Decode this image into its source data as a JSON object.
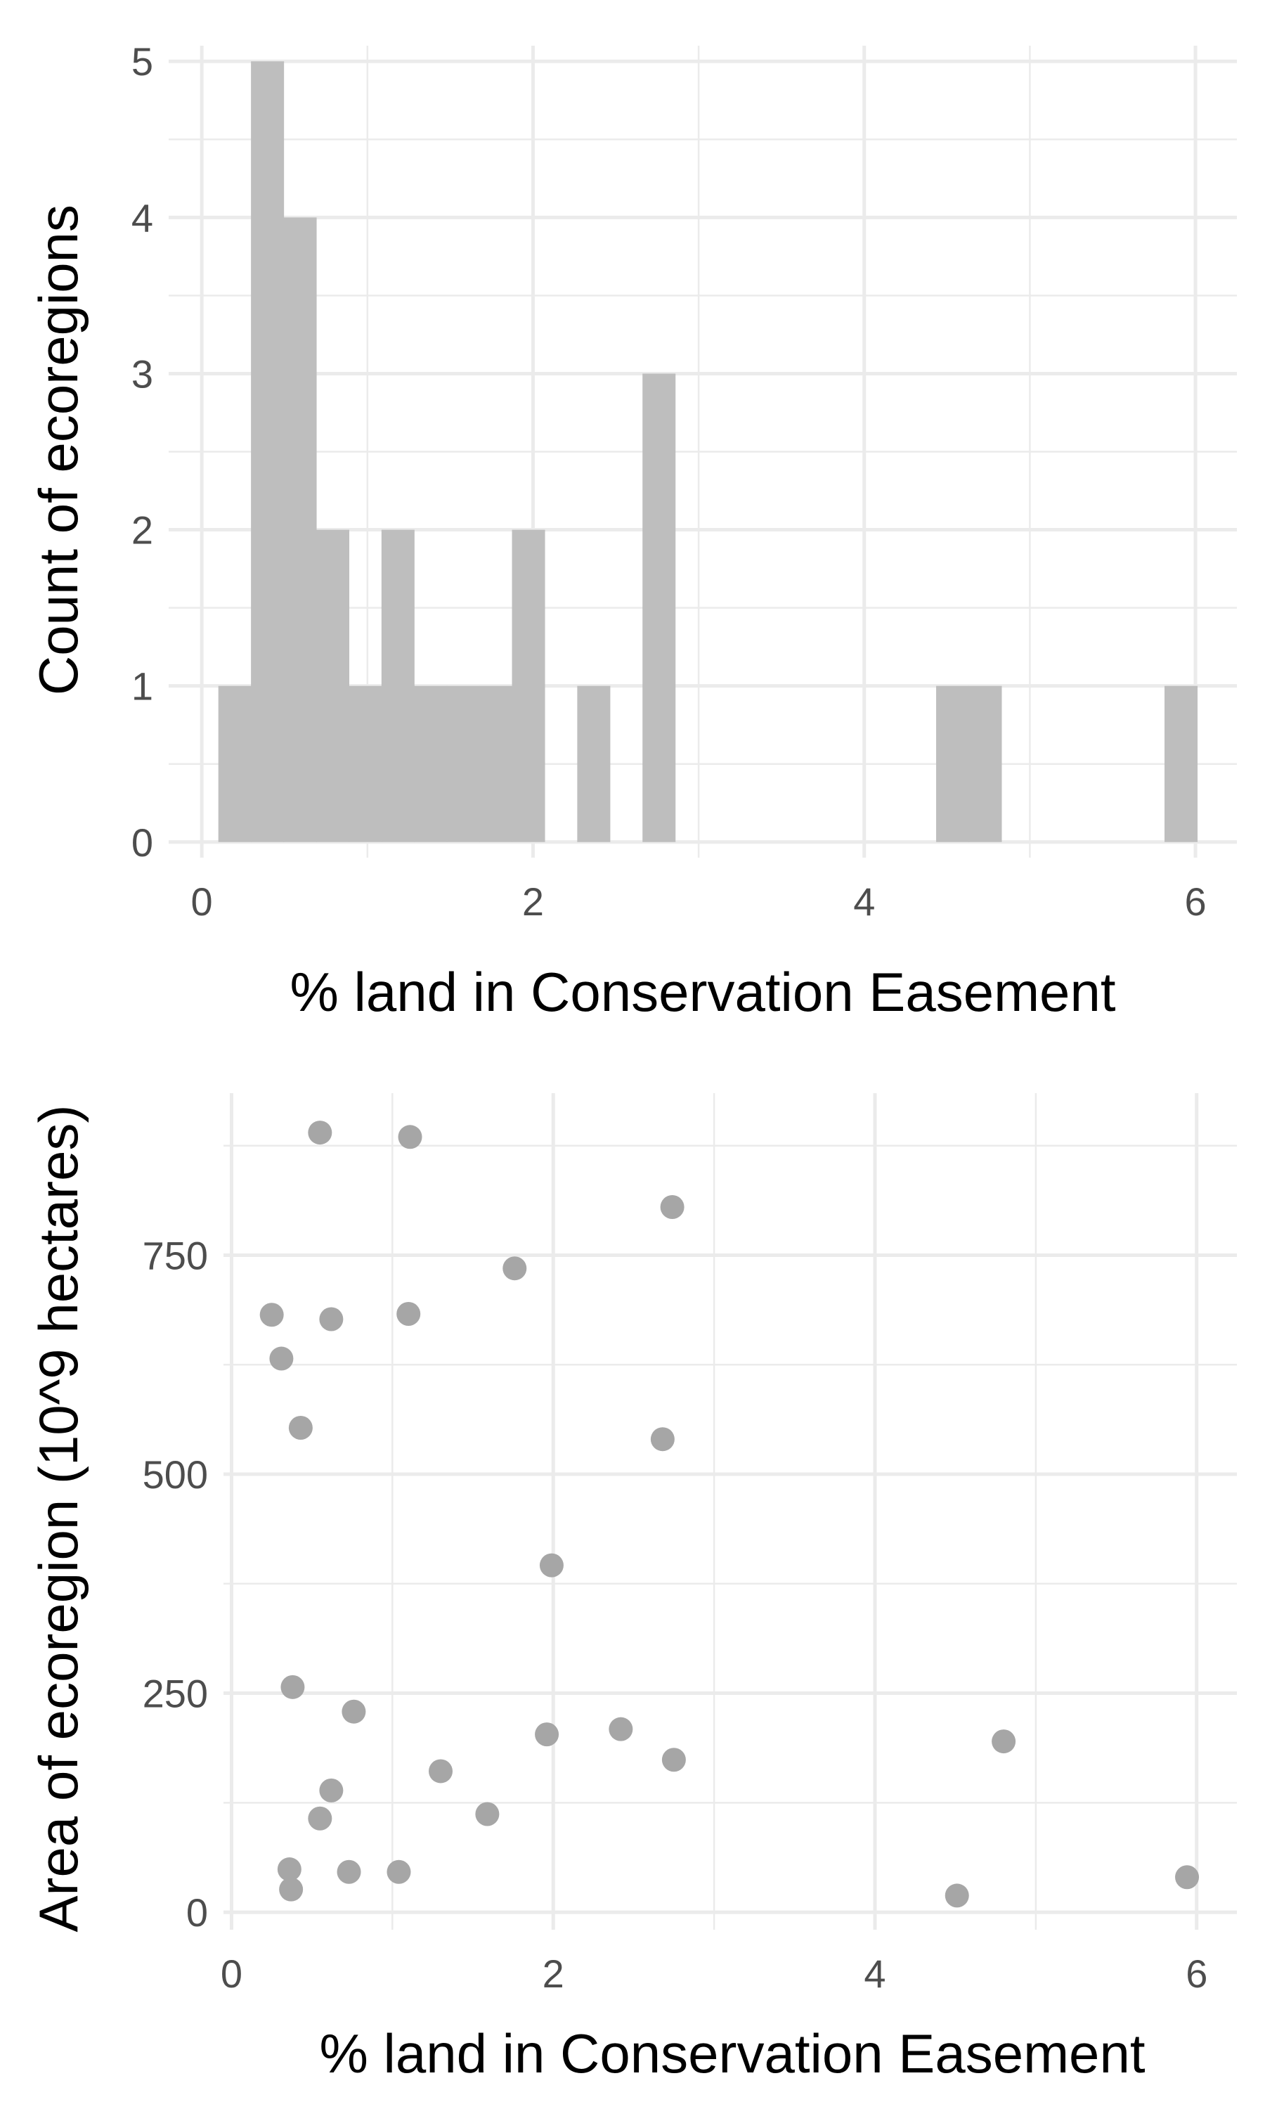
{
  "chart_data": [
    {
      "type": "bar",
      "subtype": "histogram",
      "xlabel": "% land in Conservation Easement",
      "ylabel": "Count of ecoregions",
      "xlim": [
        -0.2,
        6.25
      ],
      "ylim": [
        -0.1,
        5.1
      ],
      "xticks": [
        0,
        2,
        4,
        6
      ],
      "yticks": [
        0,
        1,
        2,
        3,
        4,
        5
      ],
      "grid": true,
      "bin_width": 0.197,
      "bin_start": 0.1,
      "counts": [
        1,
        5,
        4,
        2,
        1,
        2,
        1,
        1,
        1,
        2,
        0,
        1,
        0,
        3,
        0,
        0,
        0,
        0,
        0,
        0,
        0,
        0,
        1,
        1,
        0,
        0,
        0,
        0,
        0,
        1
      ],
      "bar_color": "#bebebe"
    },
    {
      "type": "scatter",
      "xlabel": "% land in Conservation Easement",
      "ylabel": "Area of ecoregion (10^9 hectares)",
      "xlim": [
        -0.05,
        6.25
      ],
      "ylim": [
        -20,
        935
      ],
      "xticks": [
        0,
        2,
        4,
        6
      ],
      "yticks": [
        0,
        250,
        500,
        750
      ],
      "grid": true,
      "point_color": "#a6a6a6",
      "points": [
        {
          "x": 0.55,
          "y": 890
        },
        {
          "x": 1.11,
          "y": 885
        },
        {
          "x": 2.74,
          "y": 805
        },
        {
          "x": 1.76,
          "y": 735
        },
        {
          "x": 0.25,
          "y": 682
        },
        {
          "x": 0.62,
          "y": 677
        },
        {
          "x": 1.1,
          "y": 683
        },
        {
          "x": 0.31,
          "y": 632
        },
        {
          "x": 0.43,
          "y": 553
        },
        {
          "x": 2.68,
          "y": 540
        },
        {
          "x": 1.99,
          "y": 396
        },
        {
          "x": 0.38,
          "y": 257
        },
        {
          "x": 0.76,
          "y": 229
        },
        {
          "x": 1.96,
          "y": 203
        },
        {
          "x": 2.42,
          "y": 209
        },
        {
          "x": 4.8,
          "y": 195
        },
        {
          "x": 2.75,
          "y": 174
        },
        {
          "x": 1.3,
          "y": 161
        },
        {
          "x": 0.62,
          "y": 139
        },
        {
          "x": 1.59,
          "y": 112
        },
        {
          "x": 0.55,
          "y": 107
        },
        {
          "x": 0.36,
          "y": 49
        },
        {
          "x": 0.73,
          "y": 46
        },
        {
          "x": 1.04,
          "y": 46
        },
        {
          "x": 5.94,
          "y": 40
        },
        {
          "x": 0.37,
          "y": 26
        },
        {
          "x": 4.51,
          "y": 19
        }
      ]
    }
  ]
}
